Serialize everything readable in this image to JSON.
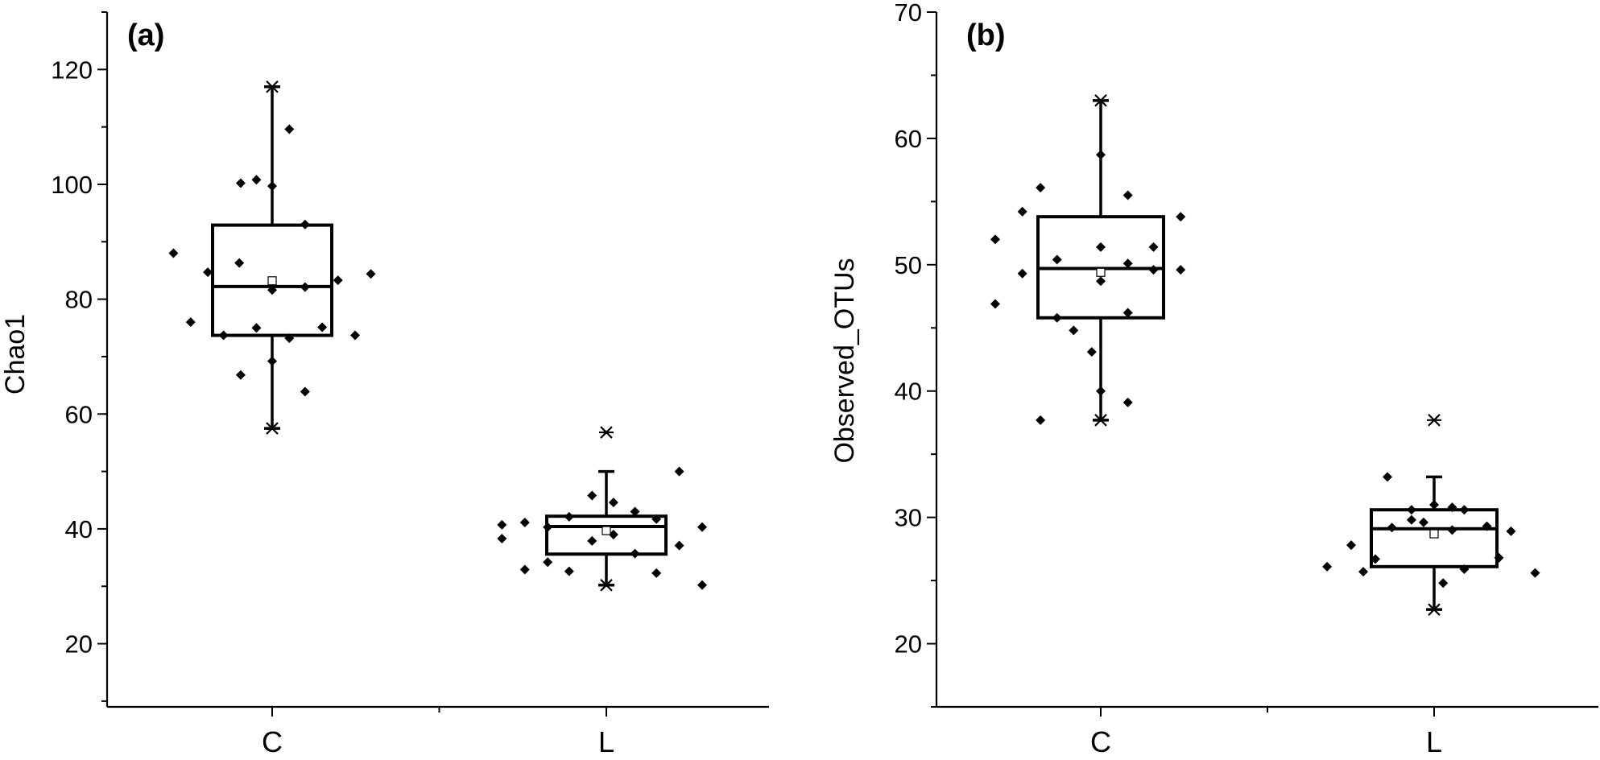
{
  "chart_data": [
    {
      "type": "box",
      "panel_label": "(a)",
      "xlabel": "",
      "ylabel": "Chao1",
      "ylim": [
        9,
        130
      ],
      "yticks": [
        20,
        40,
        60,
        80,
        100,
        120
      ],
      "categories": [
        "C",
        "L"
      ],
      "grid": false,
      "legend": "none",
      "boxes": [
        {
          "category": "C",
          "whisker_low": 57.5,
          "q1": 73.7,
          "median": 82.2,
          "q3": 92.9,
          "whisker_high": 117.0,
          "mean": 83.2,
          "extremes": [
            117.0,
            57.5
          ]
        },
        {
          "category": "L",
          "whisker_low": 30.2,
          "q1": 35.6,
          "median": 40.4,
          "q3": 42.2,
          "whisker_high": 50.0,
          "mean": 39.7,
          "extremes": [
            56.8,
            30.2
          ]
        }
      ],
      "points": [
        {
          "category": "C",
          "offset": -0.69,
          "y": 88.0
        },
        {
          "category": "C",
          "offset": -0.57,
          "y": 76.0
        },
        {
          "category": "C",
          "offset": -0.45,
          "y": 84.7
        },
        {
          "category": "C",
          "offset": -0.34,
          "y": 73.7
        },
        {
          "category": "C",
          "offset": -0.22,
          "y": 100.2
        },
        {
          "category": "C",
          "offset": -0.23,
          "y": 86.3
        },
        {
          "category": "C",
          "offset": -0.22,
          "y": 66.8
        },
        {
          "category": "C",
          "offset": -0.11,
          "y": 100.8
        },
        {
          "category": "C",
          "offset": -0.11,
          "y": 75.0
        },
        {
          "category": "C",
          "offset": 0.0,
          "y": 99.7
        },
        {
          "category": "C",
          "offset": 0.0,
          "y": 81.6
        },
        {
          "category": "C",
          "offset": 0.0,
          "y": 69.2
        },
        {
          "category": "C",
          "offset": 0.12,
          "y": 109.6
        },
        {
          "category": "C",
          "offset": 0.12,
          "y": 73.2
        },
        {
          "category": "C",
          "offset": 0.23,
          "y": 93.0
        },
        {
          "category": "C",
          "offset": 0.23,
          "y": 82.1
        },
        {
          "category": "C",
          "offset": 0.23,
          "y": 63.9
        },
        {
          "category": "C",
          "offset": 0.35,
          "y": 75.1
        },
        {
          "category": "C",
          "offset": 0.46,
          "y": 83.3
        },
        {
          "category": "C",
          "offset": 0.58,
          "y": 73.7
        },
        {
          "category": "C",
          "offset": 0.69,
          "y": 84.4
        },
        {
          "category": "L",
          "offset": -0.73,
          "y": 40.7
        },
        {
          "category": "L",
          "offset": -0.73,
          "y": 38.3
        },
        {
          "category": "L",
          "offset": -0.57,
          "y": 41.1
        },
        {
          "category": "L",
          "offset": -0.57,
          "y": 32.9
        },
        {
          "category": "L",
          "offset": -0.41,
          "y": 40.3
        },
        {
          "category": "L",
          "offset": -0.41,
          "y": 34.2
        },
        {
          "category": "L",
          "offset": -0.26,
          "y": 42.1
        },
        {
          "category": "L",
          "offset": -0.26,
          "y": 32.6
        },
        {
          "category": "L",
          "offset": -0.1,
          "y": 45.8
        },
        {
          "category": "L",
          "offset": -0.1,
          "y": 37.9
        },
        {
          "category": "L",
          "offset": 0.05,
          "y": 44.6
        },
        {
          "category": "L",
          "offset": 0.05,
          "y": 39.0
        },
        {
          "category": "L",
          "offset": 0.2,
          "y": 43.0
        },
        {
          "category": "L",
          "offset": 0.2,
          "y": 35.7
        },
        {
          "category": "L",
          "offset": 0.35,
          "y": 41.7
        },
        {
          "category": "L",
          "offset": 0.35,
          "y": 32.3
        },
        {
          "category": "L",
          "offset": 0.51,
          "y": 50.0
        },
        {
          "category": "L",
          "offset": 0.51,
          "y": 37.1
        },
        {
          "category": "L",
          "offset": 0.67,
          "y": 40.3
        },
        {
          "category": "L",
          "offset": 0.67,
          "y": 30.2
        }
      ]
    },
    {
      "type": "box",
      "panel_label": "(b)",
      "xlabel": "",
      "ylabel": "Observed_OTUs",
      "ylim": [
        15,
        70
      ],
      "yticks": [
        20,
        30,
        40,
        50,
        60,
        70
      ],
      "categories": [
        "C",
        "L"
      ],
      "grid": false,
      "legend": "none",
      "boxes": [
        {
          "category": "C",
          "whisker_low": 37.7,
          "q1": 45.8,
          "median": 49.7,
          "q3": 53.8,
          "whisker_high": 63.0,
          "mean": 49.4,
          "extremes": [
            63.0,
            37.7
          ]
        },
        {
          "category": "L",
          "whisker_low": 22.7,
          "q1": 26.1,
          "median": 29.1,
          "q3": 30.6,
          "whisker_high": 33.2,
          "mean": 28.7,
          "extremes": [
            37.7,
            22.7
          ]
        }
      ],
      "points": [
        {
          "category": "C",
          "offset": -0.7,
          "y": 52.0
        },
        {
          "category": "C",
          "offset": -0.7,
          "y": 46.9
        },
        {
          "category": "C",
          "offset": -0.52,
          "y": 54.2
        },
        {
          "category": "C",
          "offset": -0.52,
          "y": 49.3
        },
        {
          "category": "C",
          "offset": -0.4,
          "y": 56.1
        },
        {
          "category": "C",
          "offset": -0.4,
          "y": 37.7
        },
        {
          "category": "C",
          "offset": -0.29,
          "y": 50.4
        },
        {
          "category": "C",
          "offset": -0.29,
          "y": 45.8
        },
        {
          "category": "C",
          "offset": -0.18,
          "y": 44.8
        },
        {
          "category": "C",
          "offset": -0.06,
          "y": 43.1
        },
        {
          "category": "C",
          "offset": 0.0,
          "y": 58.7
        },
        {
          "category": "C",
          "offset": 0.0,
          "y": 51.4
        },
        {
          "category": "C",
          "offset": 0.0,
          "y": 48.7
        },
        {
          "category": "C",
          "offset": 0.0,
          "y": 40.0
        },
        {
          "category": "C",
          "offset": 0.18,
          "y": 55.5
        },
        {
          "category": "C",
          "offset": 0.18,
          "y": 50.1
        },
        {
          "category": "C",
          "offset": 0.18,
          "y": 46.2
        },
        {
          "category": "C",
          "offset": 0.18,
          "y": 39.1
        },
        {
          "category": "C",
          "offset": 0.35,
          "y": 51.4
        },
        {
          "category": "C",
          "offset": 0.35,
          "y": 49.6
        },
        {
          "category": "C",
          "offset": 0.53,
          "y": 53.8
        },
        {
          "category": "C",
          "offset": 0.53,
          "y": 49.6
        },
        {
          "category": "L",
          "offset": -0.71,
          "y": 26.1
        },
        {
          "category": "L",
          "offset": -0.55,
          "y": 27.8
        },
        {
          "category": "L",
          "offset": -0.47,
          "y": 25.7
        },
        {
          "category": "L",
          "offset": -0.39,
          "y": 26.7
        },
        {
          "category": "L",
          "offset": -0.31,
          "y": 33.2
        },
        {
          "category": "L",
          "offset": -0.28,
          "y": 29.2
        },
        {
          "category": "L",
          "offset": -0.15,
          "y": 30.6
        },
        {
          "category": "L",
          "offset": -0.15,
          "y": 29.8
        },
        {
          "category": "L",
          "offset": -0.07,
          "y": 29.6
        },
        {
          "category": "L",
          "offset": 0.0,
          "y": 31.0
        },
        {
          "category": "L",
          "offset": 0.06,
          "y": 24.8
        },
        {
          "category": "L",
          "offset": 0.12,
          "y": 30.8
        },
        {
          "category": "L",
          "offset": 0.12,
          "y": 29.0
        },
        {
          "category": "L",
          "offset": 0.2,
          "y": 30.6
        },
        {
          "category": "L",
          "offset": 0.2,
          "y": 25.9
        },
        {
          "category": "L",
          "offset": 0.35,
          "y": 29.3
        },
        {
          "category": "L",
          "offset": 0.51,
          "y": 28.9
        },
        {
          "category": "L",
          "offset": 0.43,
          "y": 26.8
        },
        {
          "category": "L",
          "offset": 0.67,
          "y": 25.6
        }
      ]
    }
  ]
}
